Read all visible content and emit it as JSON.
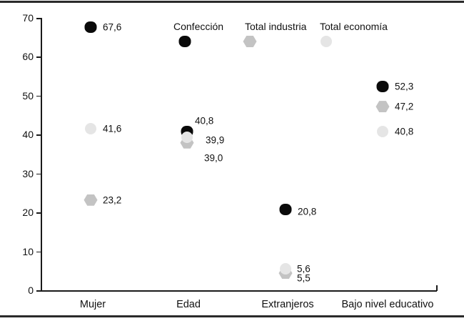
{
  "chart_data": {
    "type": "scatter",
    "title": "",
    "xlabel": "",
    "ylabel": "",
    "ylim": [
      0,
      70
    ],
    "yticks": [
      0,
      10,
      20,
      30,
      40,
      50,
      60,
      70
    ],
    "grid": false,
    "legend_position": "top-inside",
    "categories": [
      "Mujer",
      "Edad",
      "Extranjeros",
      "Bajo nivel educativo"
    ],
    "series": [
      {
        "name": "Confección",
        "marker": "squircle",
        "color": "#0a0a0a",
        "values": [
          67.6,
          40.8,
          20.8,
          52.3
        ],
        "labels": [
          "67,6",
          "40,8",
          "20,8",
          "52,3"
        ]
      },
      {
        "name": "Total industria",
        "marker": "hexagon",
        "color": "#c3c3c3",
        "values": [
          23.2,
          39.0,
          5.5,
          47.2
        ],
        "labels": [
          "23,2",
          "39,0",
          "5,5",
          "47,2"
        ]
      },
      {
        "name": "Total economía",
        "marker": "circle",
        "color": "#e5e5e5",
        "values": [
          41.6,
          39.9,
          5.6,
          40.8
        ],
        "labels": [
          "41,6",
          "39,9",
          "5,6",
          "40,8"
        ]
      }
    ]
  }
}
